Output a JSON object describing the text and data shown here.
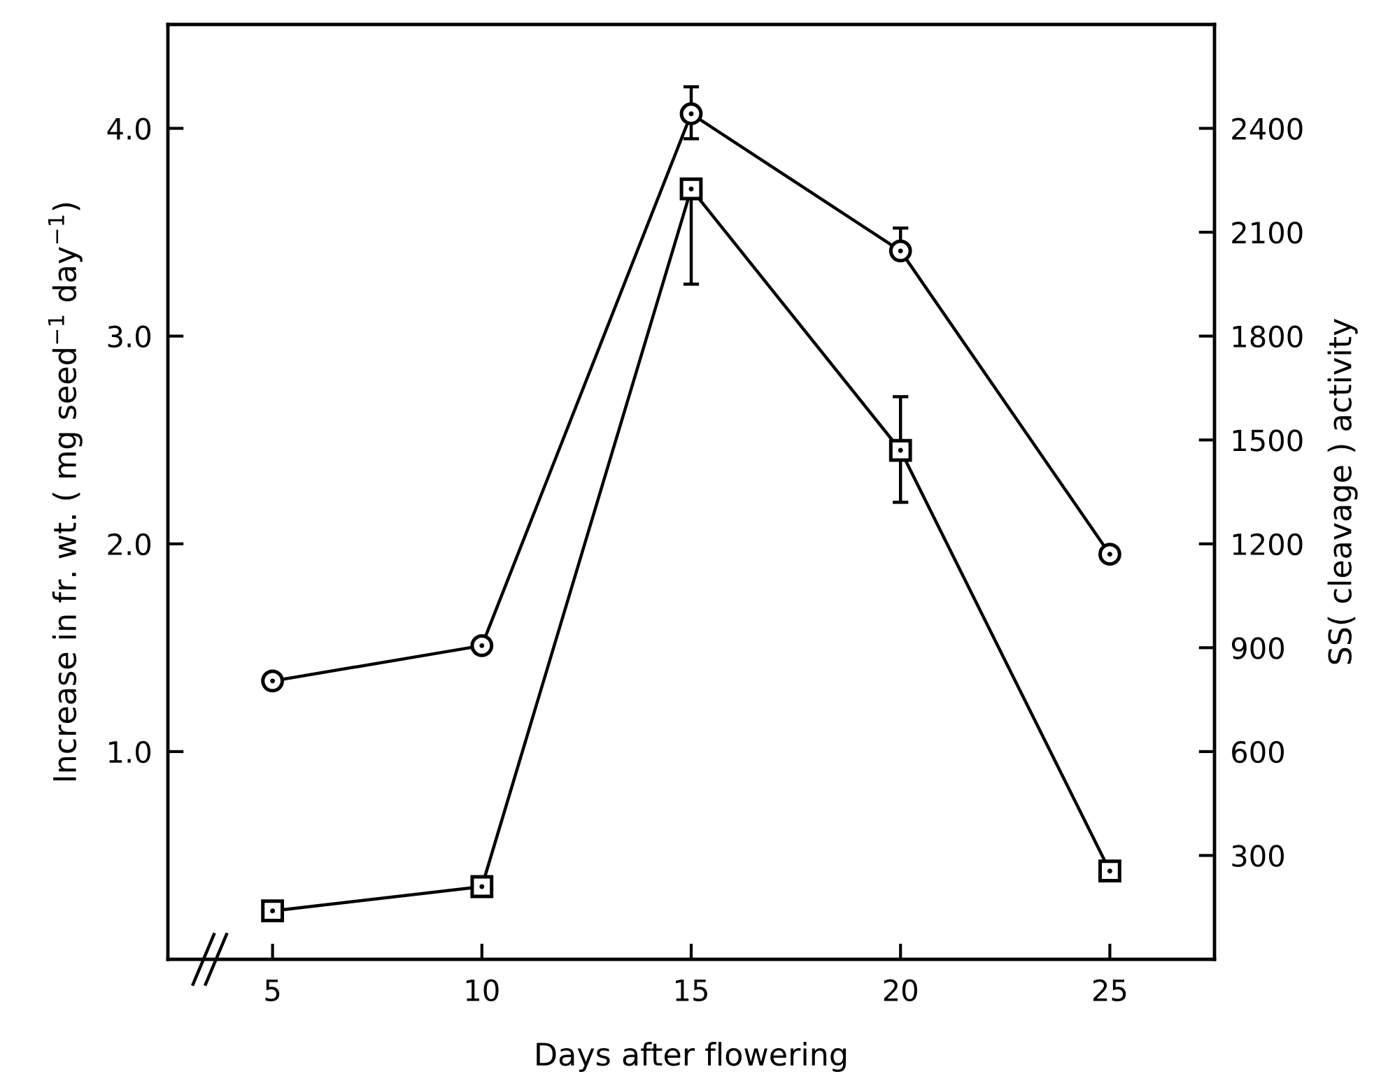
{
  "chart_data": {
    "type": "line",
    "xlabel": "Days after flowering",
    "ylabel": "Increase in fr. wt. ( mg seed$^{−1}$ day$^{−1}$)",
    "y2label": "SS( cleavage ) activity",
    "x": [
      5,
      10,
      15,
      20,
      25
    ],
    "series": [
      {
        "color": "#000000",
        "marker": "circle",
        "values": [
          1.34,
          1.51,
          4.07,
          3.41,
          1.95
        ],
        "errors": [
          null,
          null,
          [
            3.95,
            4.2
          ],
          [
            3.38,
            3.52
          ],
          null
        ]
      },
      {
        "color": "#000000",
        "marker": "square",
        "axis": "y2",
        "values": [
          140,
          210,
          2225,
          1470,
          255
        ],
        "errors": [
          null,
          null,
          [
            1950,
            2230
          ],
          [
            1320,
            1625
          ],
          null
        ]
      }
    ],
    "xlim": [
      2.5,
      27.5
    ],
    "xticks": [
      5,
      10,
      15,
      20,
      25
    ],
    "ylim": [
      0,
      4.5
    ],
    "yticks": [
      {
        "value": 1,
        "label": "1.0"
      },
      {
        "value": 2,
        "label": "2.0"
      },
      {
        "value": 3,
        "label": "3.0"
      },
      {
        "value": 4,
        "label": "4.0"
      }
    ],
    "y2lim": [
      0,
      2700
    ],
    "y2ticks": [
      300,
      600,
      900,
      1200,
      1500,
      1800,
      2100,
      2400
    ],
    "grid": false,
    "legend": false,
    "line_style": "solid"
  }
}
